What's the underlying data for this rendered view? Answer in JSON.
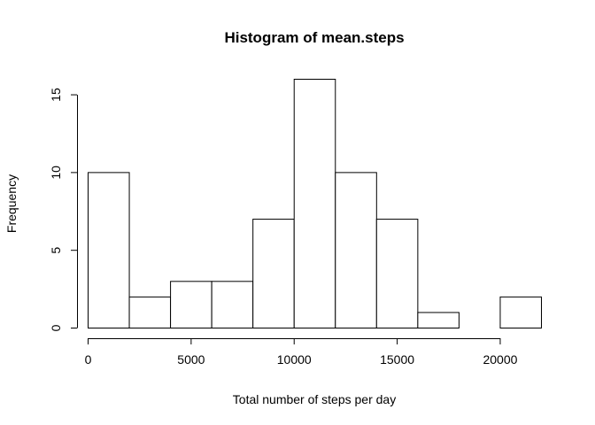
{
  "chart_data": {
    "type": "bar",
    "title": "Histogram of mean.steps",
    "xlabel": "Total number of steps per day",
    "ylabel": "Frequency",
    "bins": [
      {
        "from": 0,
        "to": 2000,
        "count": 10
      },
      {
        "from": 2000,
        "to": 4000,
        "count": 2
      },
      {
        "from": 4000,
        "to": 6000,
        "count": 3
      },
      {
        "from": 6000,
        "to": 8000,
        "count": 3
      },
      {
        "from": 8000,
        "to": 10000,
        "count": 7
      },
      {
        "from": 10000,
        "to": 12000,
        "count": 16
      },
      {
        "from": 12000,
        "to": 14000,
        "count": 10
      },
      {
        "from": 14000,
        "to": 16000,
        "count": 7
      },
      {
        "from": 16000,
        "to": 18000,
        "count": 1
      },
      {
        "from": 18000,
        "to": 20000,
        "count": 0
      },
      {
        "from": 20000,
        "to": 22000,
        "count": 2
      }
    ],
    "x_ticks": [
      0,
      5000,
      10000,
      15000,
      20000
    ],
    "x_tick_labels": [
      "0",
      "5000",
      "10000",
      "15000",
      "20000"
    ],
    "y_ticks": [
      0,
      5,
      10,
      15
    ],
    "y_tick_labels": [
      "0",
      "5",
      "10",
      "15"
    ],
    "xlim": [
      0,
      22000
    ],
    "ylim": [
      0,
      16
    ],
    "grid": false,
    "colors": {
      "bar_fill": "#ffffff",
      "bar_stroke": "#000000"
    }
  }
}
